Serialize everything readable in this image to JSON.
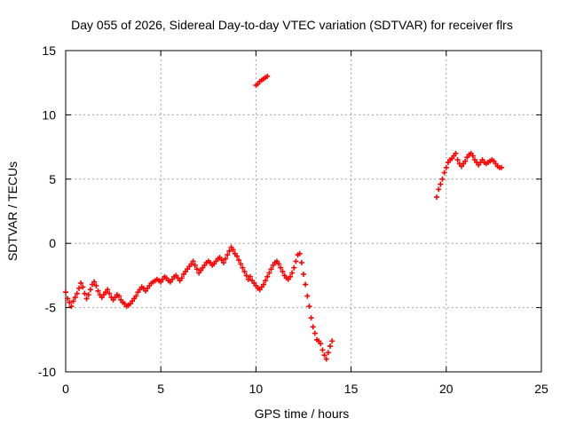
{
  "chart_data": {
    "type": "scatter",
    "title": "Day 055 of 2026, Sidereal Day-to-day VTEC variation (SDTVAR) for receiver flrs",
    "xlabel": "GPS time / hours",
    "ylabel": "SDTVAR / TECUs",
    "xlim": [
      0,
      25
    ],
    "ylim": [
      -10,
      15
    ],
    "xticks": [
      0,
      5,
      10,
      15,
      20,
      25
    ],
    "yticks": [
      -10,
      -5,
      0,
      5,
      10,
      15
    ],
    "grid": true,
    "legend": "none",
    "marker": "+",
    "series": [
      {
        "color": "#ff0000",
        "points": [
          [
            0.0,
            -3.8
          ],
          [
            0.1,
            -4.3
          ],
          [
            0.2,
            -4.6
          ],
          [
            0.3,
            -4.9
          ],
          [
            0.4,
            -4.5
          ],
          [
            0.5,
            -4.2
          ],
          [
            0.6,
            -3.9
          ],
          [
            0.7,
            -3.5
          ],
          [
            0.8,
            -3.1
          ],
          [
            0.9,
            -3.4
          ],
          [
            1.0,
            -3.9
          ],
          [
            1.1,
            -4.3
          ],
          [
            1.2,
            -4.0
          ],
          [
            1.3,
            -3.6
          ],
          [
            1.4,
            -3.2
          ],
          [
            1.5,
            -3.0
          ],
          [
            1.6,
            -3.3
          ],
          [
            1.7,
            -3.7
          ],
          [
            1.8,
            -4.0
          ],
          [
            1.9,
            -4.2
          ],
          [
            2.0,
            -4.0
          ],
          [
            2.1,
            -3.8
          ],
          [
            2.2,
            -3.6
          ],
          [
            2.3,
            -3.9
          ],
          [
            2.4,
            -4.2
          ],
          [
            2.5,
            -4.4
          ],
          [
            2.6,
            -4.2
          ],
          [
            2.7,
            -4.0
          ],
          [
            2.8,
            -4.1
          ],
          [
            2.9,
            -4.4
          ],
          [
            3.0,
            -4.6
          ],
          [
            3.1,
            -4.7
          ],
          [
            3.2,
            -4.9
          ],
          [
            3.3,
            -4.8
          ],
          [
            3.4,
            -4.7
          ],
          [
            3.5,
            -4.5
          ],
          [
            3.6,
            -4.3
          ],
          [
            3.7,
            -4.1
          ],
          [
            3.8,
            -3.8
          ],
          [
            3.9,
            -3.6
          ],
          [
            4.0,
            -3.4
          ],
          [
            4.1,
            -3.5
          ],
          [
            4.2,
            -3.7
          ],
          [
            4.3,
            -3.5
          ],
          [
            4.4,
            -3.3
          ],
          [
            4.5,
            -3.1
          ],
          [
            4.6,
            -3.0
          ],
          [
            4.7,
            -2.9
          ],
          [
            4.8,
            -2.8
          ],
          [
            4.9,
            -2.9
          ],
          [
            5.0,
            -3.0
          ],
          [
            5.1,
            -2.8
          ],
          [
            5.2,
            -2.6
          ],
          [
            5.3,
            -2.7
          ],
          [
            5.4,
            -2.9
          ],
          [
            5.5,
            -3.0
          ],
          [
            5.6,
            -2.8
          ],
          [
            5.7,
            -2.6
          ],
          [
            5.8,
            -2.5
          ],
          [
            5.9,
            -2.7
          ],
          [
            6.0,
            -2.9
          ],
          [
            6.1,
            -2.7
          ],
          [
            6.2,
            -2.4
          ],
          [
            6.3,
            -2.2
          ],
          [
            6.4,
            -2.0
          ],
          [
            6.5,
            -1.8
          ],
          [
            6.6,
            -1.6
          ],
          [
            6.7,
            -1.4
          ],
          [
            6.8,
            -1.7
          ],
          [
            6.9,
            -2.0
          ],
          [
            7.0,
            -2.3
          ],
          [
            7.1,
            -2.1
          ],
          [
            7.2,
            -1.9
          ],
          [
            7.3,
            -1.7
          ],
          [
            7.4,
            -1.5
          ],
          [
            7.5,
            -1.4
          ],
          [
            7.6,
            -1.5
          ],
          [
            7.7,
            -1.7
          ],
          [
            7.8,
            -1.6
          ],
          [
            7.9,
            -1.4
          ],
          [
            8.0,
            -1.2
          ],
          [
            8.1,
            -1.1
          ],
          [
            8.2,
            -1.3
          ],
          [
            8.3,
            -1.5
          ],
          [
            8.4,
            -1.2
          ],
          [
            8.5,
            -0.9
          ],
          [
            8.6,
            -0.6
          ],
          [
            8.7,
            -0.3
          ],
          [
            8.8,
            -0.5
          ],
          [
            8.9,
            -0.8
          ],
          [
            9.0,
            -1.0
          ],
          [
            9.1,
            -1.3
          ],
          [
            9.2,
            -1.6
          ],
          [
            9.3,
            -1.9
          ],
          [
            9.4,
            -2.2
          ],
          [
            9.5,
            -2.5
          ],
          [
            9.6,
            -2.8
          ],
          [
            9.7,
            -2.6
          ],
          [
            9.8,
            -2.9
          ],
          [
            9.9,
            -3.1
          ],
          [
            10.0,
            -3.3
          ],
          [
            10.1,
            -3.5
          ],
          [
            10.2,
            -3.6
          ],
          [
            10.3,
            -3.4
          ],
          [
            10.4,
            -3.2
          ],
          [
            10.5,
            -2.9
          ],
          [
            10.6,
            -2.6
          ],
          [
            10.7,
            -2.3
          ],
          [
            10.8,
            -2.0
          ],
          [
            10.9,
            -1.7
          ],
          [
            11.0,
            -1.5
          ],
          [
            11.1,
            -1.4
          ],
          [
            11.2,
            -1.6
          ],
          [
            11.3,
            -1.9
          ],
          [
            11.4,
            -2.2
          ],
          [
            11.5,
            -2.5
          ],
          [
            11.6,
            -2.7
          ],
          [
            11.7,
            -2.8
          ],
          [
            11.8,
            -2.6
          ],
          [
            11.9,
            -2.3
          ],
          [
            12.0,
            -1.9
          ],
          [
            12.1,
            -1.4
          ],
          [
            12.2,
            -0.9
          ],
          [
            12.3,
            -0.8
          ],
          [
            12.4,
            -1.5
          ],
          [
            12.5,
            -2.4
          ],
          [
            12.6,
            -3.2
          ],
          [
            12.7,
            -4.1
          ],
          [
            12.8,
            -4.9
          ],
          [
            12.9,
            -5.8
          ],
          [
            13.0,
            -6.5
          ],
          [
            13.1,
            -7.0
          ],
          [
            13.2,
            -7.5
          ],
          [
            13.3,
            -7.6
          ],
          [
            13.4,
            -7.8
          ],
          [
            13.5,
            -8.3
          ],
          [
            13.6,
            -8.7
          ],
          [
            13.7,
            -9.0
          ],
          [
            13.8,
            -8.5
          ],
          [
            13.9,
            -8.0
          ],
          [
            14.0,
            -7.6
          ],
          [
            10.0,
            12.3
          ],
          [
            10.1,
            12.4
          ],
          [
            10.2,
            12.6
          ],
          [
            10.3,
            12.7
          ],
          [
            10.4,
            12.8
          ],
          [
            10.5,
            12.9
          ],
          [
            10.6,
            13.0
          ],
          [
            19.5,
            3.6
          ],
          [
            19.6,
            4.2
          ],
          [
            19.7,
            4.6
          ],
          [
            19.8,
            5.0
          ],
          [
            19.9,
            5.5
          ],
          [
            20.0,
            5.9
          ],
          [
            20.1,
            6.3
          ],
          [
            20.2,
            6.5
          ],
          [
            20.3,
            6.6
          ],
          [
            20.4,
            6.8
          ],
          [
            20.5,
            7.0
          ],
          [
            20.6,
            6.5
          ],
          [
            20.7,
            6.2
          ],
          [
            20.8,
            6.0
          ],
          [
            20.9,
            6.2
          ],
          [
            21.0,
            6.4
          ],
          [
            21.1,
            6.7
          ],
          [
            21.2,
            6.9
          ],
          [
            21.3,
            7.0
          ],
          [
            21.4,
            6.8
          ],
          [
            21.5,
            6.5
          ],
          [
            21.6,
            6.3
          ],
          [
            21.7,
            6.1
          ],
          [
            21.8,
            6.3
          ],
          [
            21.9,
            6.5
          ],
          [
            22.0,
            6.3
          ],
          [
            22.1,
            6.2
          ],
          [
            22.2,
            6.3
          ],
          [
            22.3,
            6.4
          ],
          [
            22.4,
            6.5
          ],
          [
            22.5,
            6.4
          ],
          [
            22.6,
            6.2
          ],
          [
            22.7,
            6.0
          ],
          [
            22.8,
            5.9
          ],
          [
            22.9,
            5.9
          ]
        ]
      }
    ]
  }
}
